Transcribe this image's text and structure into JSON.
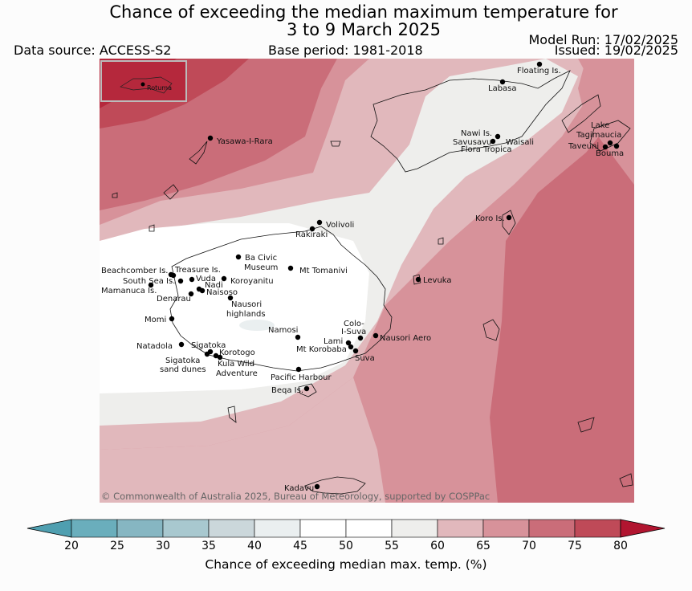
{
  "header": {
    "title_line1": "Chance of exceeding the median maximum temperature for",
    "title_line2": "3 to 9 March 2025",
    "data_source": "Data source: ACCESS-S2",
    "base_period": "Base period: 1981-2018",
    "model_run": "Model Run: 17/02/2025",
    "issued": "Issued: 19/02/2025"
  },
  "copyright": "© Commonwealth of Australia 2025, Bureau of Meteorology, supported by COSPPac",
  "inset_label": "Rotuma",
  "places": [
    "Floating Is.",
    "Labasa",
    "Nawi Is.",
    "Savusavu",
    "Waisali",
    "Flora Tropica",
    "Lake",
    "Tagimaucia",
    "Taveuni",
    "Bouma",
    "Yasawa-I-Rara",
    "Koro Is.",
    "Volivoli",
    "Rakiraki",
    "Beachcomber Is.",
    "Treasure Is.",
    "South Sea Is.",
    "Vuda",
    "Nadi",
    "Mamanuca Is.",
    "Naisoso",
    "Denarau",
    "Ba Civic",
    "Museum",
    "Mt Tomanivi",
    "Koroyanitu",
    "Nausori",
    "highlands",
    "Levuka",
    "Momi",
    "Colo-",
    "I-Suva",
    "Namosi",
    "Nausori Aero",
    "Lami",
    "Mt Korobaba",
    "Suva",
    "Natadola",
    "Sigatoka",
    "Korotogo",
    "Sigatoka",
    "sand dunes",
    "Kula Wild",
    "Adventure",
    "Pacific Harbour",
    "Beqa Is.",
    "Kadavu"
  ],
  "colorbar": {
    "label": "Chance of exceeding median max. temp. (%)",
    "ticks": [
      "20",
      "25",
      "30",
      "35",
      "40",
      "45",
      "50",
      "55",
      "60",
      "65",
      "70",
      "75",
      "80"
    ],
    "colors": [
      "#6aaebc",
      "#86b6c2",
      "#a8c8cf",
      "#cbd7db",
      "#eaeff0",
      "#ffffff",
      "#ffffff",
      "#eeeeec",
      "#e1b8bc",
      "#d7929a",
      "#ca6d79",
      "#bf4a58"
    ],
    "under_color": "#4f9fb0",
    "over_color": "#b11530"
  }
}
